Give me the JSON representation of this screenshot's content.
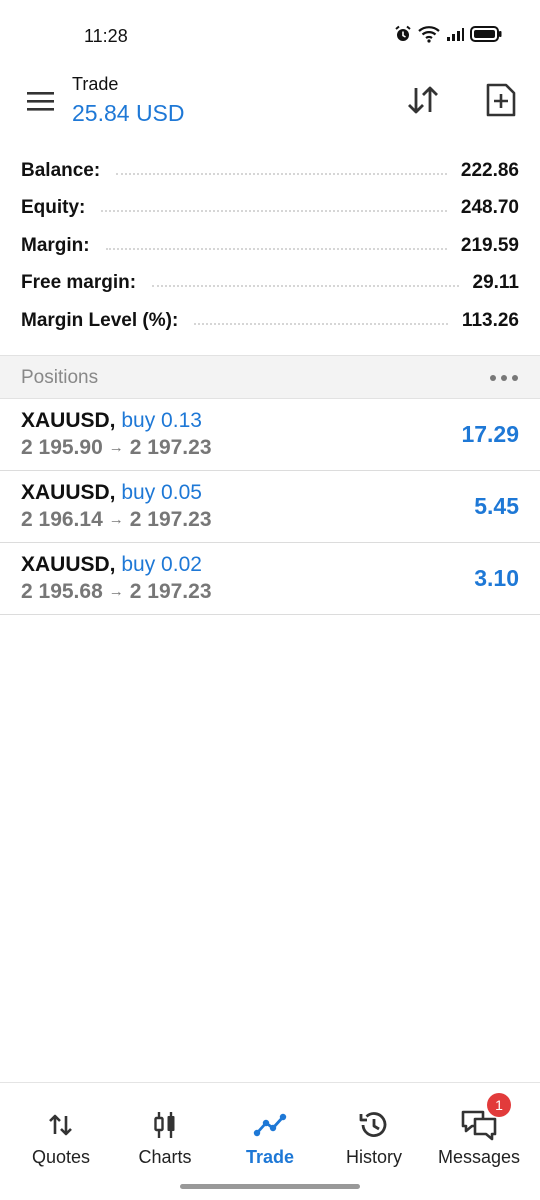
{
  "status_bar": {
    "time": "11:28",
    "icons": [
      "alarm-icon",
      "wifi-icon",
      "signal-icon",
      "battery-icon"
    ]
  },
  "header": {
    "title": "Trade",
    "subtitle": "25.84 USD",
    "icons": [
      "menu-icon",
      "sort-icon",
      "new-order-icon"
    ]
  },
  "summary": [
    {
      "label": "Balance:",
      "value": "222.86"
    },
    {
      "label": "Equity:",
      "value": "248.70"
    },
    {
      "label": "Margin:",
      "value": "219.59"
    },
    {
      "label": "Free margin:",
      "value": "29.11"
    },
    {
      "label": "Margin Level (%):",
      "value": "113.26"
    }
  ],
  "positions": {
    "title": "Positions",
    "items": [
      {
        "symbol": "XAUUSD,",
        "side": "buy 0.13",
        "open_price": "2 195.90",
        "arrow": "→",
        "current_price": "2 197.23",
        "profit": "17.29"
      },
      {
        "symbol": "XAUUSD,",
        "side": "buy 0.05",
        "open_price": "2 196.14",
        "arrow": "→",
        "current_price": "2 197.23",
        "profit": "5.45"
      },
      {
        "symbol": "XAUUSD,",
        "side": "buy 0.02",
        "open_price": "2 195.68",
        "arrow": "→",
        "current_price": "2 197.23",
        "profit": "3.10"
      }
    ]
  },
  "nav": {
    "items": [
      {
        "label": "Quotes",
        "icon": "quotes-icon"
      },
      {
        "label": "Charts",
        "icon": "charts-icon"
      },
      {
        "label": "Trade",
        "icon": "trade-icon",
        "active": true
      },
      {
        "label": "History",
        "icon": "history-icon"
      },
      {
        "label": "Messages",
        "icon": "messages-icon",
        "badge": "1"
      }
    ]
  },
  "colors": {
    "accent": "#1e78d6",
    "badge": "#e23b3b",
    "muted": "#777777"
  }
}
